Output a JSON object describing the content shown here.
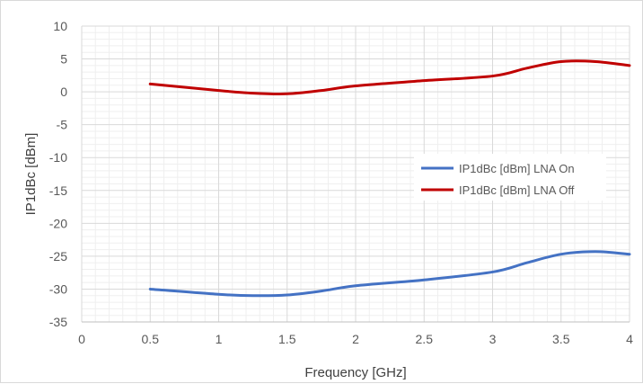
{
  "chart_data": {
    "type": "line",
    "title": "",
    "xlabel": "Frequency [GHz]",
    "ylabel": "IP1dBc [dBm]",
    "xlim": [
      0,
      4
    ],
    "ylim": [
      -35,
      10
    ],
    "x_ticks": [
      "0",
      "0.5",
      "1",
      "1.5",
      "2",
      "2.5",
      "3",
      "3.5",
      "4"
    ],
    "y_ticks": [
      "10",
      "5",
      "0",
      "-5",
      "-10",
      "-15",
      "-20",
      "-25",
      "-30",
      "-35"
    ],
    "grid": true,
    "minor_grid": true,
    "legend_position": "right",
    "series": [
      {
        "name": "IP1dBc [dBm] LNA On",
        "color": "#4472c4",
        "x": [
          0.5,
          1.0,
          1.25,
          1.5,
          1.75,
          2.0,
          2.5,
          3.0,
          3.25,
          3.5,
          3.75,
          4.0
        ],
        "y": [
          -30.0,
          -30.8,
          -31.0,
          -30.9,
          -30.3,
          -29.5,
          -28.6,
          -27.4,
          -26.0,
          -24.7,
          -24.3,
          -24.7
        ]
      },
      {
        "name": "IP1dBc [dBm] LNA Off",
        "color": "#c00000",
        "x": [
          0.5,
          1.0,
          1.25,
          1.5,
          1.75,
          2.0,
          2.5,
          3.0,
          3.25,
          3.5,
          3.75,
          4.0
        ],
        "y": [
          1.2,
          0.2,
          -0.2,
          -0.3,
          0.2,
          0.9,
          1.7,
          2.4,
          3.6,
          4.6,
          4.6,
          4.0
        ]
      }
    ]
  }
}
